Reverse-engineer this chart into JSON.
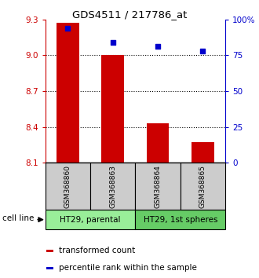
{
  "title": "GDS4511 / 217786_at",
  "samples": [
    "GSM368860",
    "GSM368863",
    "GSM368864",
    "GSM368865"
  ],
  "transformed_counts": [
    9.27,
    9.0,
    8.43,
    8.27
  ],
  "percentile_ranks": [
    94,
    84,
    81,
    78
  ],
  "ylim_left": [
    8.1,
    9.3
  ],
  "ylim_right": [
    0,
    100
  ],
  "yticks_left": [
    8.1,
    8.4,
    8.7,
    9.0,
    9.3
  ],
  "yticks_right": [
    0,
    25,
    50,
    75,
    100
  ],
  "yticklabels_right": [
    "0",
    "25",
    "50",
    "75",
    "100%"
  ],
  "bar_bottom": 8.1,
  "bar_color": "#cc0000",
  "dot_color": "#0000cc",
  "cell_line_groups": [
    {
      "label": "HT29, parental",
      "samples": [
        0,
        1
      ],
      "color": "#99ee99"
    },
    {
      "label": "HT29, 1st spheres",
      "samples": [
        2,
        3
      ],
      "color": "#66cc66"
    }
  ],
  "sample_bg_color": "#cccccc",
  "legend_red_label": "transformed count",
  "legend_blue_label": "percentile rank within the sample",
  "cell_line_label": "cell line",
  "left_tick_color": "#cc0000",
  "right_tick_color": "#0000cc",
  "dotted_lines": [
    8.4,
    8.7,
    9.0
  ],
  "bar_width": 0.5
}
